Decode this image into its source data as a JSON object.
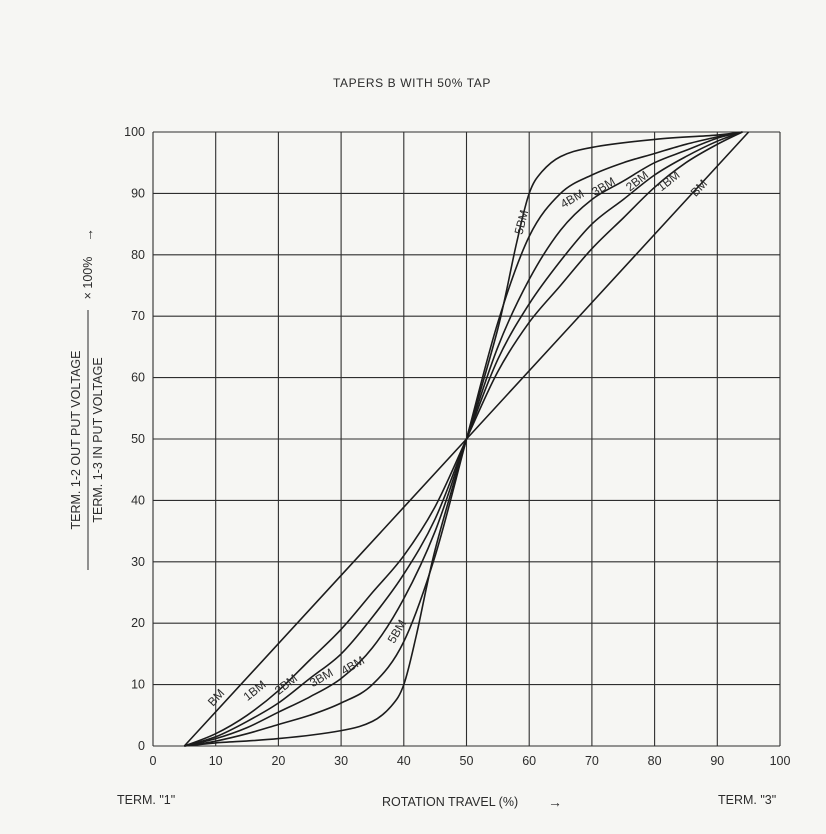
{
  "chart_data": {
    "type": "line",
    "title": "TAPERS B WITH 50% TAP",
    "xlabel": "ROTATION TRAVEL (%)",
    "xlabel_arrow": "→",
    "ylabel_numerator": "TERM. 1-2 OUT PUT VOLTAGE",
    "ylabel_denominator": "TERM. 1-3 IN PUT VOLTAGE",
    "ylabel_factor": "× 100%",
    "ylabel_arrow": "→",
    "term_left": "TERM. \"1\"",
    "term_right": "TERM. \"3\"",
    "xlim": [
      0,
      100
    ],
    "ylim": [
      0,
      100
    ],
    "x_ticks": [
      0,
      10,
      20,
      30,
      40,
      50,
      60,
      70,
      80,
      90,
      100
    ],
    "y_ticks": [
      0,
      10,
      20,
      30,
      40,
      50,
      60,
      70,
      80,
      90,
      100
    ],
    "grid": true,
    "series": [
      {
        "name": "BM",
        "x": [
          5,
          50,
          95
        ],
        "y": [
          0,
          50,
          100
        ],
        "lower_label_at": [
          11,
          7
        ],
        "upper_label_at": [
          88,
          90
        ]
      },
      {
        "name": "1BM",
        "x": [
          5,
          10,
          15,
          20,
          25,
          30,
          35,
          40,
          45,
          50,
          55,
          60,
          65,
          70,
          75,
          80,
          85,
          90,
          94
        ],
        "y": [
          0,
          2,
          5,
          9,
          14,
          19,
          25,
          31,
          39,
          50,
          61,
          69,
          75,
          81,
          86,
          91,
          95,
          98,
          100
        ],
        "lower_label_at": [
          17,
          8
        ],
        "upper_label_at": [
          83,
          91
        ]
      },
      {
        "name": "2BM",
        "x": [
          5,
          10,
          15,
          20,
          25,
          30,
          35,
          40,
          45,
          50,
          55,
          60,
          65,
          70,
          75,
          80,
          85,
          90,
          94
        ],
        "y": [
          0,
          1.5,
          4,
          7,
          11,
          15,
          21,
          28,
          37,
          50,
          63,
          72,
          79,
          85,
          89,
          93,
          96,
          98.5,
          100
        ],
        "lower_label_at": [
          22,
          9
        ],
        "upper_label_at": [
          78,
          91
        ]
      },
      {
        "name": "3BM",
        "x": [
          5,
          10,
          15,
          20,
          25,
          30,
          35,
          40,
          45,
          50,
          55,
          60,
          65,
          70,
          75,
          80,
          85,
          90,
          94
        ],
        "y": [
          0,
          1.2,
          3,
          5.5,
          8,
          11,
          16,
          24,
          35,
          50,
          65,
          76,
          84,
          89,
          92,
          95,
          97,
          99,
          100
        ],
        "lower_label_at": [
          27.5,
          10
        ],
        "upper_label_at": [
          72.5,
          90
        ]
      },
      {
        "name": "4BM",
        "x": [
          5,
          10,
          15,
          20,
          25,
          30,
          35,
          40,
          45,
          50,
          55,
          60,
          65,
          70,
          75,
          80,
          85,
          90,
          94
        ],
        "y": [
          0,
          0.8,
          2,
          3.5,
          5,
          7,
          10,
          17,
          31,
          50,
          69,
          83,
          90,
          93,
          95,
          96.5,
          98,
          99.2,
          100
        ],
        "lower_label_at": [
          32.5,
          12
        ],
        "upper_label_at": [
          67.5,
          88
        ]
      },
      {
        "name": "5BM",
        "x": [
          5,
          10,
          20,
          30,
          35,
          38,
          40,
          42,
          45,
          50,
          55,
          58,
          60,
          62,
          65,
          70,
          80,
          90,
          94
        ],
        "y": [
          0,
          0.5,
          1.2,
          2.5,
          4,
          6.5,
          10,
          18,
          32,
          50,
          68,
          82,
          90,
          93.5,
          96,
          97.5,
          98.8,
          99.5,
          100
        ],
        "lower_label_at": [
          40,
          18
        ],
        "upper_label_at": [
          60,
          85
        ]
      }
    ]
  }
}
